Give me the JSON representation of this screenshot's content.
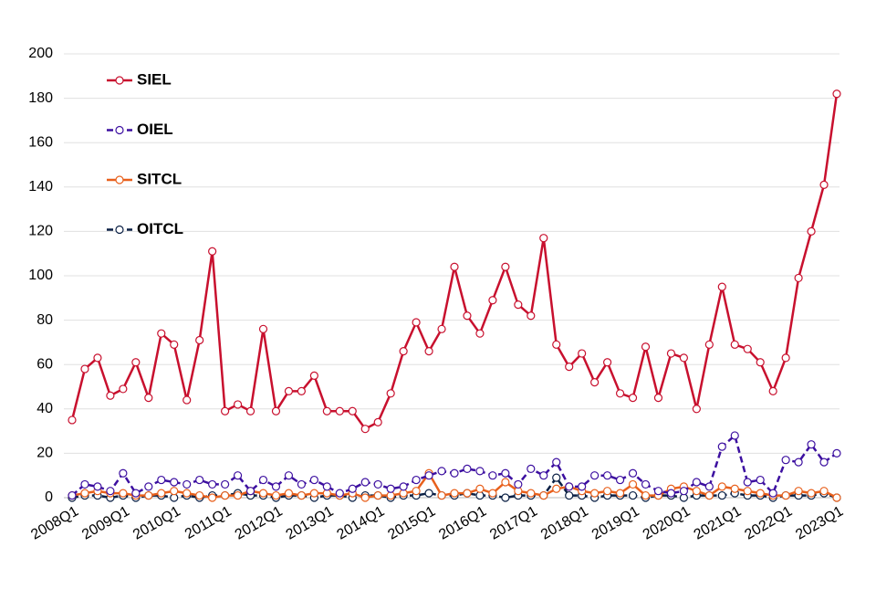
{
  "chart_data": {
    "type": "line",
    "categories": [
      "2008Q1",
      null,
      null,
      null,
      "2009Q1",
      null,
      null,
      null,
      "2010Q1",
      null,
      null,
      null,
      "2011Q1",
      null,
      null,
      null,
      "2012Q1",
      null,
      null,
      null,
      "2013Q1",
      null,
      null,
      null,
      "2014Q1",
      null,
      null,
      null,
      "2015Q1",
      null,
      null,
      null,
      "2016Q1",
      null,
      null,
      null,
      "2017Q1",
      null,
      null,
      null,
      "2018Q1",
      null,
      null,
      null,
      "2019Q1",
      null,
      null,
      null,
      "2020Q1",
      null,
      null,
      null,
      "2021Q1",
      null,
      null,
      null,
      "2022Q1",
      null,
      null,
      null,
      "2023Q1"
    ],
    "series": [
      {
        "name": "SIEL",
        "color": "#c8102e",
        "dash": false,
        "values": [
          35,
          58,
          63,
          46,
          49,
          61,
          45,
          74,
          69,
          44,
          71,
          111,
          39,
          42,
          39,
          76,
          39,
          48,
          48,
          55,
          39,
          39,
          39,
          31,
          34,
          47,
          66,
          79,
          66,
          76,
          104,
          82,
          74,
          89,
          104,
          87,
          82,
          117,
          69,
          59,
          65,
          52,
          61,
          47,
          45,
          68,
          45,
          65,
          63,
          40,
          69,
          95,
          69,
          67,
          61,
          48,
          63,
          99,
          120,
          141,
          182
        ]
      },
      {
        "name": "OIEL",
        "color": "#3c0fa0",
        "dash": true,
        "values": [
          1,
          6,
          5,
          3,
          11,
          2,
          5,
          8,
          7,
          6,
          8,
          6,
          6,
          10,
          3,
          8,
          5,
          10,
          6,
          8,
          5,
          2,
          4,
          7,
          6,
          4,
          5,
          8,
          10,
          12,
          11,
          13,
          12,
          10,
          11,
          6,
          13,
          10,
          16,
          5,
          5,
          10,
          10,
          8,
          11,
          6,
          3,
          2,
          3,
          7,
          5,
          23,
          28,
          7,
          8,
          2,
          17,
          16,
          24,
          16,
          20
        ]
      },
      {
        "name": "SITCL",
        "color": "#e8601c",
        "dash": false,
        "values": [
          1,
          2,
          3,
          2,
          2,
          1,
          1,
          2,
          3,
          2,
          1,
          0,
          1,
          1,
          3,
          2,
          1,
          2,
          1,
          2,
          2,
          1,
          2,
          0,
          1,
          1,
          2,
          3,
          11,
          1,
          2,
          2,
          4,
          2,
          7,
          3,
          2,
          1,
          4,
          5,
          3,
          2,
          3,
          2,
          6,
          1,
          1,
          4,
          5,
          3,
          1,
          5,
          4,
          3,
          2,
          1,
          1,
          3,
          2,
          3,
          0
        ]
      },
      {
        "name": "OITCL",
        "color": "#0a1f44",
        "dash": true,
        "values": [
          0,
          1,
          1,
          0,
          1,
          0,
          1,
          1,
          0,
          1,
          0,
          1,
          1,
          2,
          1,
          1,
          0,
          1,
          1,
          0,
          1,
          1,
          0,
          1,
          1,
          0,
          1,
          1,
          2,
          1,
          1,
          2,
          1,
          1,
          0,
          1,
          1,
          1,
          9,
          1,
          1,
          0,
          1,
          1,
          1,
          0,
          1,
          1,
          0,
          1,
          1,
          1,
          2,
          1,
          1,
          0,
          1,
          1,
          1,
          2,
          0
        ]
      }
    ],
    "ylim": [
      0,
      200
    ],
    "yticks": [
      0,
      20,
      40,
      60,
      80,
      100,
      120,
      140,
      160,
      180,
      200
    ],
    "grid": true,
    "legend": "upper-left"
  }
}
